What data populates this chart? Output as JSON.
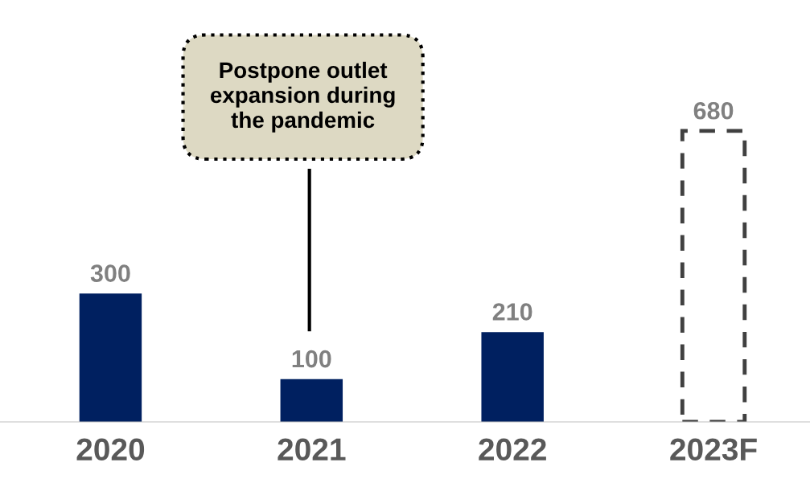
{
  "chart_data": {
    "type": "bar",
    "categories": [
      "2020",
      "2021",
      "2022",
      "2023F"
    ],
    "series": [
      {
        "color": "#002060",
        "values": [
          300,
          100,
          210,
          null
        ]
      },
      {
        "color": "#404040",
        "line_style": "dashed",
        "values": [
          null,
          null,
          null,
          680
        ]
      }
    ],
    "data_labels": true,
    "grid": false,
    "tick_labels": "x",
    "annotations": [
      "Postpone outlet\nexpansion during\nthe pandemic"
    ]
  }
}
